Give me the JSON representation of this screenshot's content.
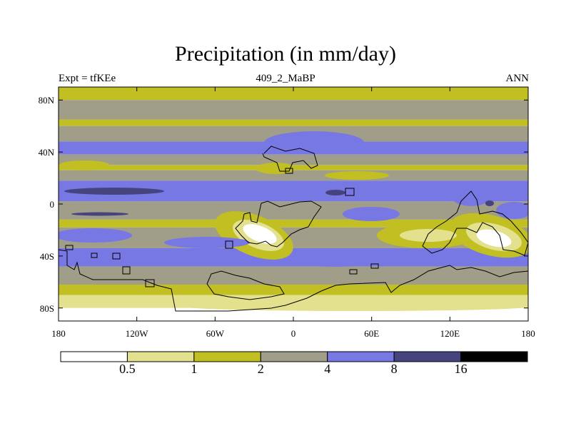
{
  "chart_data": {
    "type": "heatmap",
    "title": "Precipitation (in mm/day)",
    "left_label": "Expt = tfKEe",
    "center_label": "409_2_MaBP",
    "right_label": "ANN",
    "x_ticks": [
      "180",
      "120W",
      "60W",
      "0",
      "60E",
      "120E",
      "180"
    ],
    "y_ticks": [
      "80N",
      "40N",
      "0",
      "40S",
      "80S"
    ],
    "xlim": [
      -180,
      180
    ],
    "ylim": [
      -90,
      90
    ],
    "colorbar": {
      "levels": [
        "0.5",
        "1",
        "2",
        "4",
        "8",
        "16"
      ],
      "colors": [
        "#ffffff",
        "#e3e18d",
        "#c2bf22",
        "#a09e89",
        "#7878e4",
        "#46447f",
        "#000000"
      ]
    },
    "latitude_bands": [
      {
        "lat_range": [
          90,
          80
        ],
        "level_index": 2
      },
      {
        "lat_range": [
          80,
          65
        ],
        "level_index": 3
      },
      {
        "lat_range": [
          65,
          60
        ],
        "level_index": 2
      },
      {
        "lat_range": [
          60,
          48
        ],
        "level_index": 3
      },
      {
        "lat_range": [
          48,
          38
        ],
        "level_index": 4
      },
      {
        "lat_range": [
          38,
          30
        ],
        "level_index": 3
      },
      {
        "lat_range": [
          30,
          26
        ],
        "level_index": 2
      },
      {
        "lat_range": [
          26,
          18
        ],
        "level_index": 3
      },
      {
        "lat_range": [
          18,
          2
        ],
        "level_index": 4
      },
      {
        "lat_range": [
          2,
          -12
        ],
        "level_index": 3
      },
      {
        "lat_range": [
          -12,
          -18
        ],
        "level_index": 2
      },
      {
        "lat_range": [
          -18,
          -34
        ],
        "level_index": 3
      },
      {
        "lat_range": [
          -34,
          -48
        ],
        "level_index": 4
      },
      {
        "lat_range": [
          -48,
          -62
        ],
        "level_index": 3
      },
      {
        "lat_range": [
          -62,
          -70
        ],
        "level_index": 2
      },
      {
        "lat_range": [
          -70,
          -80
        ],
        "level_index": 1
      },
      {
        "lat_range": [
          -80,
          -90
        ],
        "level_index": 0
      }
    ]
  }
}
